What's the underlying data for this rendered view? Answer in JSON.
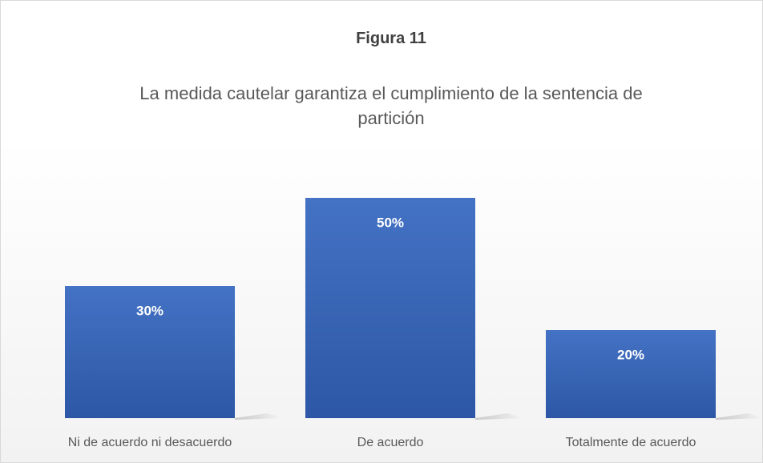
{
  "chart_data": {
    "type": "bar",
    "title": "Figura 11",
    "subtitle": "La medida cautelar garantiza el cumplimiento de la sentencia de partición",
    "categories": [
      "Ni de acuerdo ni desacuerdo",
      "De acuerdo",
      "Totalmente de acuerdo"
    ],
    "values": [
      30,
      50,
      20
    ],
    "value_labels": [
      "30%",
      "50%",
      "20%"
    ],
    "color": "#4472c4"
  }
}
